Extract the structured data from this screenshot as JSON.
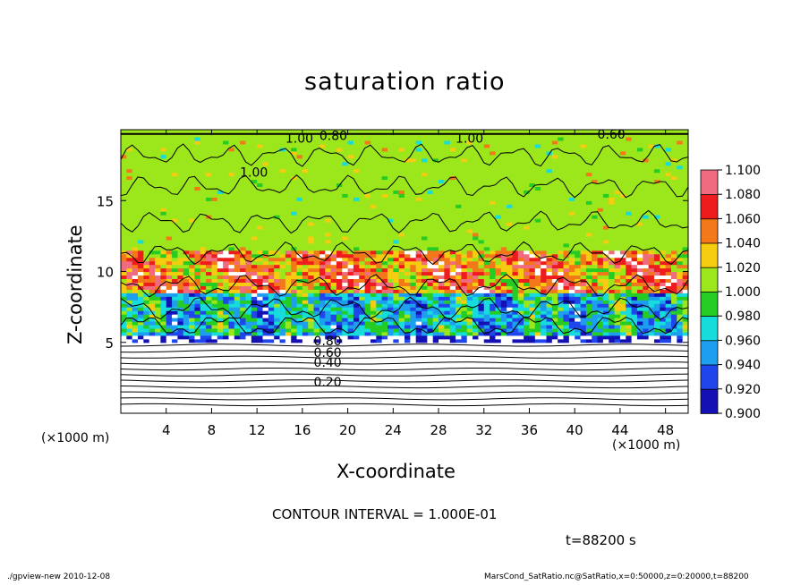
{
  "figure": {
    "x_unit_left": "(×1000 m)",
    "x_unit_right": "(×1000 m)",
    "contour_interval": "CONTOUR INTERVAL = 1.000E-01",
    "time": "t=88200 s",
    "footer_left": "./gpview-new   2010-12-08",
    "footer_right": "MarsCond_SatRatio.nc@SatRatio,x=0:50000,z=0:20000,t=88200"
  },
  "colors": {
    "below_range": "#ffffff",
    "above_range": "#ffffff",
    "contour_line": "#000000",
    "background": "#ffffff"
  },
  "chart_data": {
    "type": "heatmap",
    "title": "saturation ratio",
    "xlabel": "X-coordinate",
    "ylabel": "Z-coordinate",
    "x_range": [
      0,
      50
    ],
    "y_range": [
      0,
      20
    ],
    "x_ticks": [
      4,
      8,
      12,
      16,
      20,
      24,
      28,
      32,
      36,
      40,
      44,
      48
    ],
    "y_ticks": [
      5,
      10,
      15
    ],
    "grid": false,
    "colorbar": {
      "levels": [
        0.9,
        0.92,
        0.94,
        0.96,
        0.98,
        1.0,
        1.02,
        1.04,
        1.06,
        1.08,
        1.1
      ],
      "labels": [
        "0.900",
        "0.920",
        "0.940",
        "0.960",
        "0.980",
        "1.000",
        "1.020",
        "1.040",
        "1.060",
        "1.080",
        "1.100"
      ],
      "colors": [
        "#7a18c8",
        "#1410b4",
        "#1e46ea",
        "#1e9eee",
        "#16dcdc",
        "#24cc24",
        "#9ce61c",
        "#f6cc10",
        "#f2781a",
        "#ee1c1c",
        "#f06a80",
        "#f8aab8"
      ]
    },
    "contour_labels": [
      {
        "text": "0.20",
        "x": 17,
        "z": 2.2
      },
      {
        "text": "0.40",
        "x": 17,
        "z": 3.6
      },
      {
        "text": "0.60",
        "x": 17,
        "z": 4.3
      },
      {
        "text": "0.80",
        "x": 17,
        "z": 5.1
      },
      {
        "text": "1.00",
        "x": 10.5,
        "z": 17.0
      },
      {
        "text": "1.00",
        "x": 14.5,
        "z": 19.4
      },
      {
        "text": "1.00",
        "x": 29.5,
        "z": 19.4
      },
      {
        "text": "0.80",
        "x": 17.5,
        "z": 19.6
      },
      {
        "text": "0.60",
        "x": 42,
        "z": 19.7
      }
    ],
    "bands": [
      {
        "z_from": 0,
        "z_to": 5.3,
        "description_value": "< 0.900"
      },
      {
        "z_from": 5.3,
        "z_to": 8.5,
        "description_value": "0.920 – 1.000"
      },
      {
        "z_from": 8.5,
        "z_to": 11.5,
        "description_value": "1.020 – 1.100"
      },
      {
        "z_from": 11.5,
        "z_to": 19.7,
        "description_value": "1.000 – 1.020"
      }
    ]
  }
}
